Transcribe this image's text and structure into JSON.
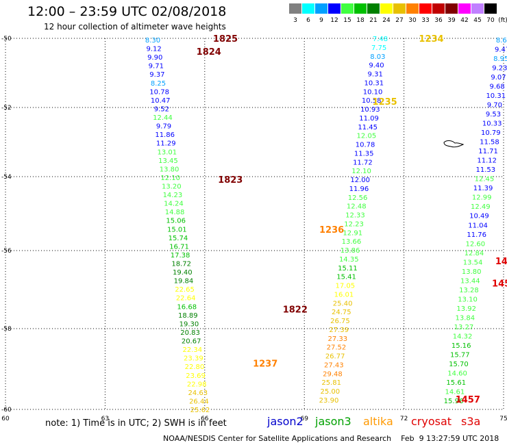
{
  "header": {
    "title": "12:00 – 23:59 UTC 02/08/2018",
    "subtitle": "12 hour collection of altimeter wave heights"
  },
  "scale": {
    "unit_label": "(ft)",
    "bins": [
      {
        "label": "3",
        "color": "#808080"
      },
      {
        "label": "6",
        "color": "#00ffff"
      },
      {
        "label": "9",
        "color": "#00a0ff"
      },
      {
        "label": "12",
        "color": "#0000ff"
      },
      {
        "label": "15",
        "color": "#40ff40"
      },
      {
        "label": "18",
        "color": "#00c000"
      },
      {
        "label": "21",
        "color": "#008000"
      },
      {
        "label": "24",
        "color": "#ffff00"
      },
      {
        "label": "27",
        "color": "#e8c000"
      },
      {
        "label": "30",
        "color": "#ff8000"
      },
      {
        "label": "33",
        "color": "#ff0000"
      },
      {
        "label": "36",
        "color": "#c00000"
      },
      {
        "label": "39",
        "color": "#800000"
      },
      {
        "label": "42",
        "color": "#ff00ff"
      },
      {
        "label": "45",
        "color": "#c080ff"
      },
      {
        "label": "70",
        "color": "#000000"
      }
    ]
  },
  "map": {
    "lon_range": [
      60,
      75
    ],
    "lat_range": [
      -50,
      -60
    ],
    "lon_ticks": [
      "60",
      "63",
      "66",
      "69",
      "72",
      "75"
    ],
    "lat_ticks": [
      "-50",
      "-52",
      "-54",
      "-56",
      "-58",
      "-60"
    ],
    "grid": true
  },
  "tracks": [
    {
      "id": "descending-track-1",
      "values": [
        "8.30",
        "9.12",
        "9.90",
        "9.71",
        "9.37",
        "8.25",
        "10.78",
        "10.47",
        "9.52",
        "12.44",
        "9.79",
        "11.86",
        "11.29",
        "13.01",
        "13.45",
        "13.80",
        "12.10",
        "13.20",
        "14.23",
        "14.24",
        "14.88",
        "15.06",
        "15.01",
        "15.74",
        "16.71",
        "17.38",
        "18.72",
        "19.40",
        "19.84",
        "22.65",
        "22.64",
        "16.68",
        "18.89",
        "19.30",
        "20.83",
        "20.67",
        "22.34",
        "23.39",
        "22.80",
        "23.69",
        "22.98",
        "24.63",
        "26.44",
        "25.62"
      ],
      "colors": [
        "#00a0ff",
        "#0000ff",
        "#0000ff",
        "#0000ff",
        "#0000ff",
        "#00a0ff",
        "#0000ff",
        "#0000ff",
        "#0000ff",
        "#40ff40",
        "#0000ff",
        "#0000ff",
        "#0000ff",
        "#40ff40",
        "#40ff40",
        "#40ff40",
        "#40ff40",
        "#40ff40",
        "#40ff40",
        "#40ff40",
        "#40ff40",
        "#00c000",
        "#00c000",
        "#00c000",
        "#00c000",
        "#00c000",
        "#008000",
        "#008000",
        "#008000",
        "#ffff00",
        "#ffff00",
        "#00c000",
        "#008000",
        "#008000",
        "#008000",
        "#008000",
        "#ffff00",
        "#ffff00",
        "#ffff00",
        "#ffff00",
        "#ffff00",
        "#e8c000",
        "#e8c000",
        "#e8c000"
      ],
      "start": [
        223,
        58
      ],
      "end": [
        292,
        598
      ]
    },
    {
      "id": "ascending-track-1",
      "values": [
        "7.48",
        "7.75",
        "8.03",
        "9.40",
        "9.31",
        "10.31",
        "10.10",
        "10.58",
        "10.93",
        "11.09",
        "11.45",
        "12.05",
        "10.78",
        "11.35",
        "11.72",
        "12.10",
        "12.00",
        "11.96",
        "12.56",
        "12.48",
        "12.33",
        "12.23",
        "12.91",
        "13.66",
        "13.86",
        "14.35",
        "15.11",
        "15.41",
        "17.05",
        "16.01",
        "25.40",
        "24.75",
        "26.75",
        "27.39",
        "27.33",
        "27.52",
        "26.77",
        "27.43",
        "29.48",
        "25.81",
        "25.00",
        "23.90"
      ],
      "colors": [
        "#00ffff",
        "#00ffff",
        "#00a0ff",
        "#0000ff",
        "#0000ff",
        "#0000ff",
        "#0000ff",
        "#0000ff",
        "#0000ff",
        "#0000ff",
        "#0000ff",
        "#40ff40",
        "#0000ff",
        "#0000ff",
        "#0000ff",
        "#40ff40",
        "#0000ff",
        "#0000ff",
        "#40ff40",
        "#40ff40",
        "#40ff40",
        "#40ff40",
        "#40ff40",
        "#40ff40",
        "#40ff40",
        "#40ff40",
        "#00c000",
        "#00c000",
        "#ffff00",
        "#ffff00",
        "#e8c000",
        "#e8c000",
        "#e8c000",
        "#e8c000",
        "#ff8000",
        "#ff8000",
        "#e8c000",
        "#ff8000",
        "#ff8000",
        "#e8c000",
        "#e8c000",
        "#e8c000"
      ],
      "start": [
        555,
        56
      ],
      "end": [
        480,
        584
      ]
    },
    {
      "id": "descending-track-2",
      "values": [
        "8.69",
        "9.47",
        "8.95",
        "9.23",
        "9.07",
        "9.68",
        "10.31",
        "9.70",
        "9.53",
        "10.33",
        "10.79",
        "11.58",
        "11.71",
        "11.12",
        "11.53",
        "12.45",
        "11.39",
        "12.99",
        "12.49",
        "10.49",
        "11.04",
        "11.76",
        "12.60",
        "12.84",
        "13.54",
        "13.80",
        "13.44",
        "13.28",
        "13.10",
        "13.92",
        "13.84",
        "13.27",
        "14.32",
        "15.16",
        "15.77",
        "15.70",
        "14.60",
        "15.61",
        "14.61",
        "15.96"
      ],
      "colors": [
        "#00a0ff",
        "#0000ff",
        "#00a0ff",
        "#0000ff",
        "#0000ff",
        "#0000ff",
        "#0000ff",
        "#0000ff",
        "#0000ff",
        "#0000ff",
        "#0000ff",
        "#0000ff",
        "#0000ff",
        "#0000ff",
        "#0000ff",
        "#40ff40",
        "#0000ff",
        "#40ff40",
        "#40ff40",
        "#0000ff",
        "#0000ff",
        "#0000ff",
        "#40ff40",
        "#40ff40",
        "#40ff40",
        "#40ff40",
        "#40ff40",
        "#40ff40",
        "#40ff40",
        "#40ff40",
        "#40ff40",
        "#40ff40",
        "#40ff40",
        "#00c000",
        "#00c000",
        "#00c000",
        "#40ff40",
        "#00c000",
        "#40ff40",
        "#00c000"
      ],
      "start": [
        735,
        58
      ],
      "end": [
        662,
        585
      ]
    }
  ],
  "time_labels": [
    {
      "text": "1825",
      "color": "#800000",
      "lon": 66.25,
      "lat": -50.0
    },
    {
      "text": "1824",
      "color": "#800000",
      "lon": 65.75,
      "lat": -50.35
    },
    {
      "text": "1823",
      "color": "#800000",
      "lon": 66.4,
      "lat": -53.8
    },
    {
      "text": "1822",
      "color": "#800000",
      "lon": 68.35,
      "lat": -57.3
    },
    {
      "text": "1234",
      "color": "#e8c000",
      "lon": 72.45,
      "lat": -50.0
    },
    {
      "text": "1235",
      "color": "#e8c000",
      "lon": 71.05,
      "lat": -51.7
    },
    {
      "text": "1236",
      "color": "#ff8000",
      "lon": 69.45,
      "lat": -55.15
    },
    {
      "text": "1237",
      "color": "#ff8000",
      "lon": 67.45,
      "lat": -58.75
    },
    {
      "text": "1457",
      "color": "#e00000",
      "lon": 73.55,
      "lat": -59.72
    },
    {
      "text": "145",
      "color": "#e00000",
      "lon": 74.65,
      "lat": -56.6
    },
    {
      "text": "14",
      "color": "#e00000",
      "lon": 74.75,
      "lat": -56.0
    }
  ],
  "notes": {
    "note_text": "note:  1) Time is in UTC;  2) SWH is in feet",
    "legend": [
      {
        "text": "jason2",
        "color": "#0000cc"
      },
      {
        "text": "jason3",
        "color": "#00a000"
      },
      {
        "text": "altika",
        "color": "#ff9900"
      },
      {
        "text": "cryosat",
        "color": "#e00000"
      },
      {
        "text": "s3a",
        "color": "#e00000"
      }
    ],
    "footer": "NOAA/NESDIS Center for Satellite Applications and Research    Feb  9 13:27:59 UTC 2018"
  }
}
